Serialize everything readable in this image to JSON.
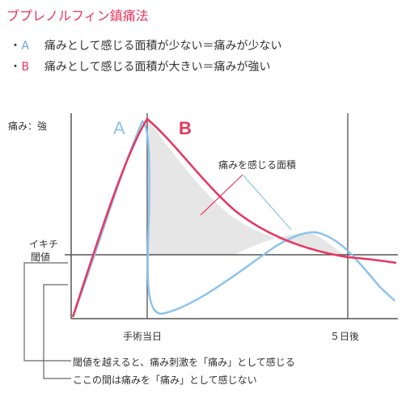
{
  "title": "ブプレノルフィン鎮痛法",
  "legend": [
    {
      "bullet": "・",
      "letter": "A",
      "text": "痛みとして感じる面積が少ない＝痛みが少ない",
      "color": "#6aa8e0"
    },
    {
      "bullet": "・",
      "letter": "B",
      "text": "痛みとして感じる面積が大きい＝痛みが強い",
      "color": "#e8355f"
    }
  ],
  "diagram": {
    "y_top_label": "痛み：強",
    "threshold_label_line1": "イキチ",
    "threshold_label_line2": "閾値",
    "curve_a_label": "A",
    "curve_b_label": "B",
    "area_label": "痛みを感じる面積",
    "x_tick_1": "手術当日",
    "x_tick_2": "５日後",
    "note_above": "閾値を越えると、痛み刺激を「痛み」として感じる",
    "note_below": "ここの間は痛みを「痛み」として感じない"
  },
  "colors": {
    "curve_a": "#8cc3ec",
    "curve_b": "#e8355f",
    "area_fill": "#e6e6e6",
    "axis": "#555555",
    "threshold": "#555555"
  }
}
